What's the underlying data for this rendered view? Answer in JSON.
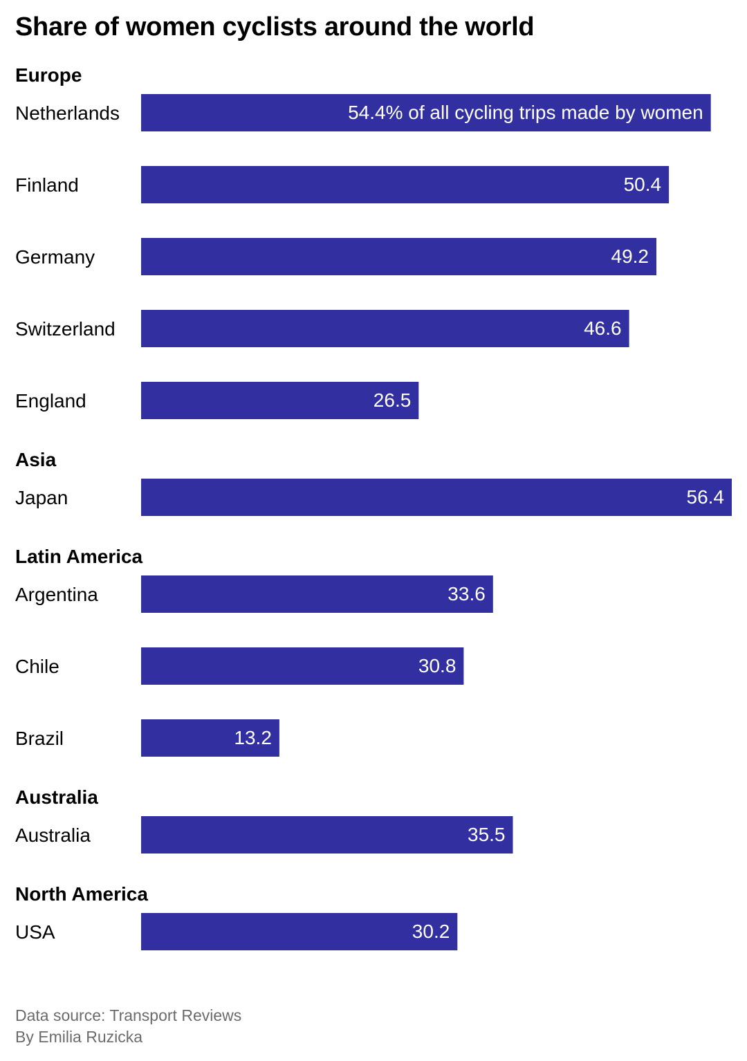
{
  "chart_data": {
    "type": "bar",
    "orientation": "horizontal",
    "title": "Share of women cyclists around the world",
    "unit_suffix": "% of all cycling trips made by women",
    "bar_color": "#3230a0",
    "label_color": "#ffffff",
    "xlim": [
      0,
      56.4
    ],
    "groups": [
      {
        "name": "Europe",
        "items": [
          {
            "label": "Netherlands",
            "value": 54.4,
            "value_label": "54.4% of all cycling trips made by women"
          },
          {
            "label": "Finland",
            "value": 50.4,
            "value_label": "50.4"
          },
          {
            "label": "Germany",
            "value": 49.2,
            "value_label": "49.2"
          },
          {
            "label": "Switzerland",
            "value": 46.6,
            "value_label": "46.6"
          },
          {
            "label": "England",
            "value": 26.5,
            "value_label": "26.5"
          }
        ]
      },
      {
        "name": "Asia",
        "items": [
          {
            "label": "Japan",
            "value": 56.4,
            "value_label": "56.4"
          }
        ]
      },
      {
        "name": "Latin America",
        "items": [
          {
            "label": "Argentina",
            "value": 33.6,
            "value_label": "33.6"
          },
          {
            "label": "Chile",
            "value": 30.8,
            "value_label": "30.8"
          },
          {
            "label": "Brazil",
            "value": 13.2,
            "value_label": "13.2"
          }
        ]
      },
      {
        "name": "Australia",
        "items": [
          {
            "label": "Australia",
            "value": 35.5,
            "value_label": "35.5"
          }
        ]
      },
      {
        "name": "North America",
        "items": [
          {
            "label": "USA",
            "value": 30.2,
            "value_label": "30.2"
          }
        ]
      }
    ]
  },
  "footer": {
    "source": "Data source: Transport Reviews",
    "author": "By Emilia Ruzicka"
  }
}
